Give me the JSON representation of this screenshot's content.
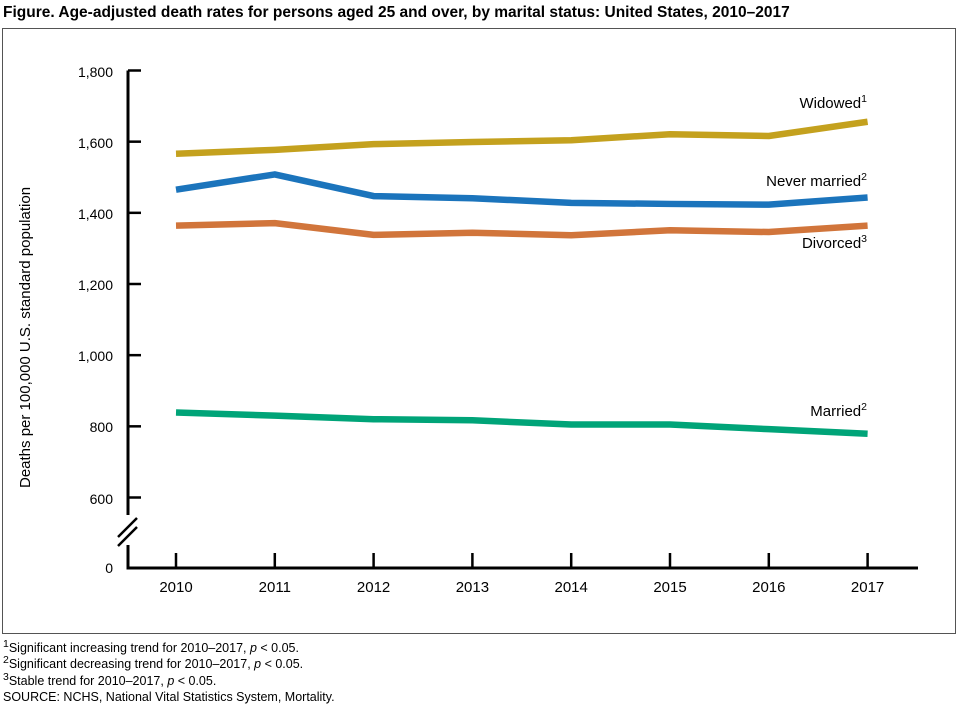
{
  "title": "Figure. Age-adjusted death rates for persons aged 25 and over, by marital status: United States, 2010–2017",
  "chart_data": {
    "type": "line",
    "title": "Age-adjusted death rates for persons aged 25 and over, by marital status: United States, 2010–2017",
    "xlabel": "",
    "ylabel": "Deaths per 100,000 U.S. standard population",
    "categories": [
      "2010",
      "2011",
      "2012",
      "2013",
      "2014",
      "2015",
      "2016",
      "2017"
    ],
    "y_ticks": [
      1800,
      1600,
      1400,
      1200,
      1000,
      800,
      600
    ],
    "y_tick_labels": [
      "1,800",
      "1,600",
      "1,400",
      "1,200",
      "1,000",
      "800",
      "600"
    ],
    "zero_label": "0",
    "axis_break": true,
    "ylim": [
      0,
      1800
    ],
    "grid": false,
    "legend_position": "end-of-line labels",
    "series": [
      {
        "name": "Widowed",
        "marker": "1",
        "color": "#C4A11E",
        "values": [
          1566,
          1577,
          1593,
          1599,
          1604,
          1621,
          1616,
          1656
        ]
      },
      {
        "name": "Never married",
        "marker": "2",
        "color": "#1B74BC",
        "values": [
          1465,
          1508,
          1447,
          1441,
          1428,
          1425,
          1423,
          1443
        ]
      },
      {
        "name": "Divorced",
        "marker": "3",
        "color": "#D1753B",
        "values": [
          1364,
          1371,
          1338,
          1344,
          1337,
          1351,
          1346,
          1364
        ]
      },
      {
        "name": "Married",
        "marker": "2",
        "color": "#00A478",
        "values": [
          839,
          830,
          820,
          817,
          805,
          805,
          792,
          779
        ]
      }
    ]
  },
  "footnotes": [
    {
      "marker": "1",
      "before": "Significant increasing trend for 2010–2017, ",
      "p": "p",
      "after": " < 0.05."
    },
    {
      "marker": "2",
      "before": "Significant decreasing trend for 2010–2017, ",
      "p": "p",
      "after": " < 0.05."
    },
    {
      "marker": "3",
      "before": "Stable trend for 2010–2017, ",
      "p": "p",
      "after": " < 0.05."
    }
  ],
  "source": "SOURCE: NCHS, National Vital Statistics System, Mortality."
}
